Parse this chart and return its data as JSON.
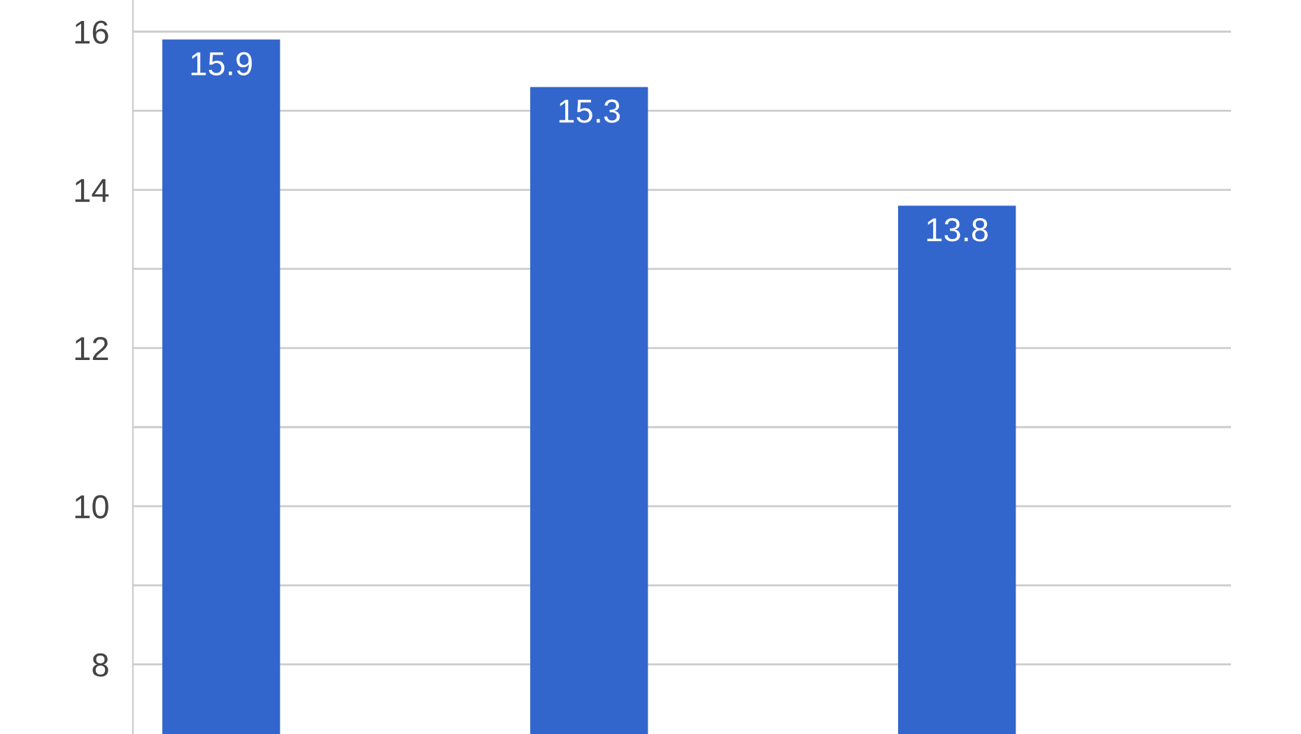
{
  "chart_data": {
    "type": "bar",
    "categories": [
      null,
      null,
      null
    ],
    "values": [
      15.9,
      15.3,
      13.8
    ],
    "color": "#3366cc",
    "data_labels": true,
    "ylim": [
      7.12,
      16.4
    ],
    "yticks": [
      8,
      {
        "value": 9,
        "label": null
      },
      10,
      {
        "value": 11,
        "label": null
      },
      12,
      {
        "value": 13,
        "label": null
      },
      14,
      {
        "value": 15,
        "label": null
      },
      16
    ],
    "grid": "y",
    "legend": false
  }
}
